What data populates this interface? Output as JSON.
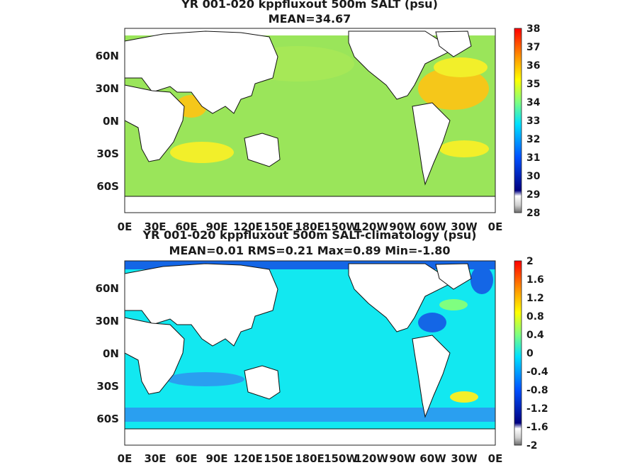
{
  "panels": [
    {
      "title": "YR 001-020 kppfluxout 500m SALT (psu)",
      "subtitle": "MEAN=34.67",
      "colorbar": [
        "38",
        "37",
        "36",
        "35",
        "34",
        "33",
        "32",
        "31",
        "30",
        "29",
        "28"
      ]
    },
    {
      "title": "YR 001-020 kppfluxout 500m SALT-climatology (psu)",
      "subtitle": "MEAN=0.01   RMS=0.21   Max=0.89   Min=-1.80",
      "colorbar": [
        "2",
        "1.6",
        "1.2",
        "0.8",
        "0.4",
        "0",
        "-0.4",
        "-0.8",
        "-1.2",
        "-1.6",
        "-2"
      ]
    }
  ],
  "lat_ticks": [
    "60N",
    "30N",
    "0N",
    "30S",
    "60S"
  ],
  "lon_ticks": [
    "0E",
    "30E",
    "60E",
    "90E",
    "120E",
    "150E",
    "180E",
    "150W",
    "120W",
    "90W",
    "60W",
    "30W",
    "0E"
  ],
  "colors": {
    "ocean_top": "#9ae55a",
    "high_top": "#f5c71a",
    "mid_top": "#f2ef2a",
    "ocean_bottom": "#12e8f0",
    "neg_bottom": "#2a9ff0",
    "deep_bottom": "#1466e6",
    "land": "#ffffff"
  }
}
